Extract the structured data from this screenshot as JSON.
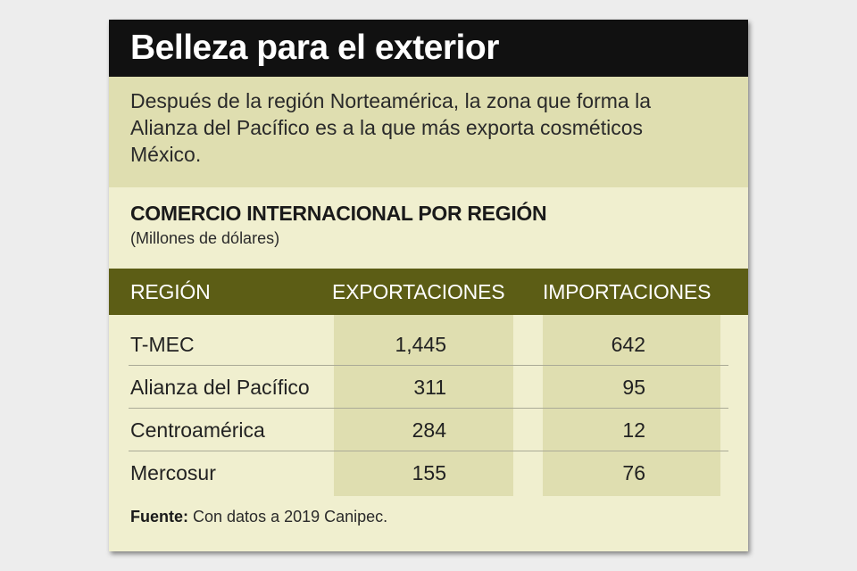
{
  "title": "Belleza para el exterior",
  "intro": "Después de la región Norteamérica, la zona que forma la Alianza del Pacífico es a la que más exporta cosméticos México.",
  "chart_data": {
    "type": "table",
    "title": "COMERCIO INTERNACIONAL POR REGIÓN",
    "subtitle": "(Millones de dólares)",
    "columns": [
      "REGIÓN",
      "EXPORTACIONES",
      "IMPORTACIONES"
    ],
    "rows": [
      {
        "region": "T-MEC",
        "exportaciones": "1,445",
        "importaciones": "642"
      },
      {
        "region": "Alianza del Pacífico",
        "exportaciones": "311",
        "importaciones": "95"
      },
      {
        "region": "Centroamérica",
        "exportaciones": "284",
        "importaciones": "12"
      },
      {
        "region": "Mercosur",
        "exportaciones": "155",
        "importaciones": "76"
      }
    ]
  },
  "source": {
    "label": "Fuente:",
    "text": "Con datos a 2019 Canipec."
  },
  "colors": {
    "title_bar": "#111111",
    "intro_bg": "#dfdeb0",
    "card_bg": "#f0efcf",
    "header_bg": "#5c5d15",
    "column_shade": "#dfdeb0"
  }
}
